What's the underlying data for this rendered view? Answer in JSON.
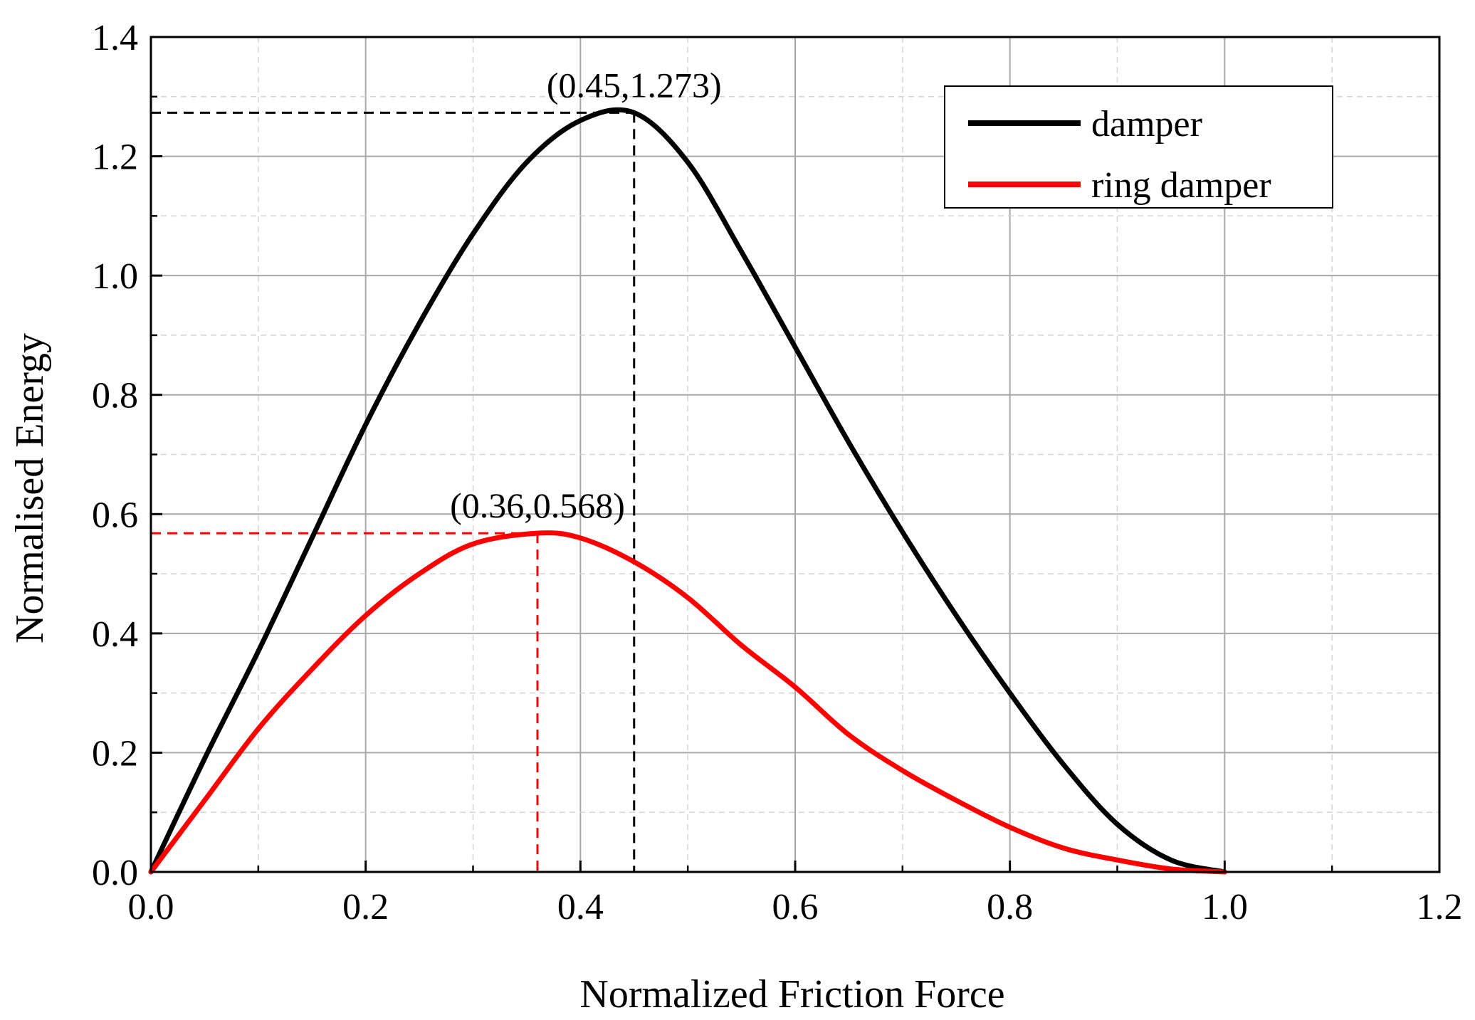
{
  "chart_data": {
    "type": "line",
    "title": "",
    "xlabel": "Normalized Friction Force",
    "ylabel": "Normalised Energy",
    "xlim": [
      0.0,
      1.2
    ],
    "ylim": [
      0.0,
      1.4
    ],
    "x_major_ticks": [
      "0.0",
      "0.2",
      "0.4",
      "0.6",
      "0.8",
      "1.0",
      "1.2"
    ],
    "y_major_ticks": [
      "0.0",
      "0.2",
      "0.4",
      "0.6",
      "0.8",
      "1.0",
      "1.2",
      "1.4"
    ],
    "grid": true,
    "legend_position": "top-right",
    "series": [
      {
        "name": "damper",
        "color": "#000000",
        "x": [
          0.0,
          0.05,
          0.1,
          0.15,
          0.2,
          0.25,
          0.3,
          0.35,
          0.4,
          0.45,
          0.5,
          0.55,
          0.6,
          0.65,
          0.7,
          0.75,
          0.8,
          0.85,
          0.9,
          0.95,
          1.0
        ],
        "y": [
          0.0,
          0.19,
          0.37,
          0.56,
          0.75,
          0.92,
          1.07,
          1.19,
          1.26,
          1.273,
          1.19,
          1.04,
          0.88,
          0.72,
          0.57,
          0.43,
          0.3,
          0.18,
          0.08,
          0.02,
          0.0
        ]
      },
      {
        "name": "ring damper",
        "color": "#ff0000",
        "x": [
          0.0,
          0.05,
          0.1,
          0.15,
          0.2,
          0.25,
          0.3,
          0.36,
          0.4,
          0.45,
          0.5,
          0.55,
          0.6,
          0.65,
          0.7,
          0.75,
          0.8,
          0.85,
          0.9,
          0.95,
          1.0
        ],
        "y": [
          0.0,
          0.12,
          0.24,
          0.34,
          0.43,
          0.5,
          0.55,
          0.568,
          0.56,
          0.52,
          0.46,
          0.38,
          0.31,
          0.23,
          0.17,
          0.12,
          0.075,
          0.04,
          0.02,
          0.005,
          0.0
        ]
      }
    ],
    "annotations": [
      {
        "label": "(0.45,1.273)",
        "x": 0.45,
        "y": 1.273,
        "color": "#000000"
      },
      {
        "label": "(0.36,0.568)",
        "x": 0.36,
        "y": 0.568,
        "color": "#ff0000"
      }
    ]
  }
}
